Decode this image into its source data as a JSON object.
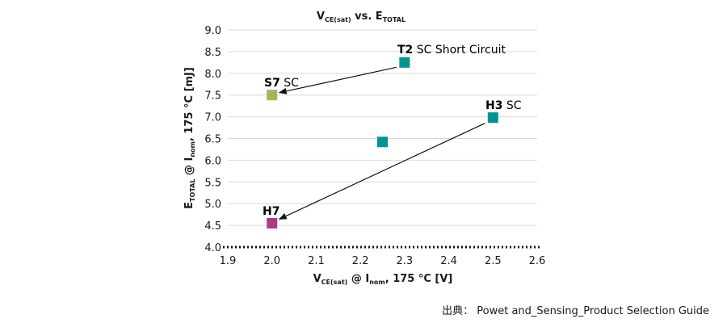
{
  "chart_data": {
    "type": "scatter",
    "title": {
      "main": "V",
      "main_sub": "CE(sat)",
      "rest": " vs. E",
      "rest_sub": "TOTAL"
    },
    "xlabel": {
      "p1": "V",
      "p1_sub": "CE(sat)",
      "p2": " @ I",
      "p2_sub": "nom",
      "p3": ", 175 °C [V]"
    },
    "ylabel": {
      "p1": "E",
      "p1_sub": "TOTAL",
      "p2": " @ I",
      "p2_sub": "nom",
      "p3": ", 175 °C [mJ]"
    },
    "xlim": [
      1.9,
      2.6
    ],
    "ylim": [
      4.0,
      9.0
    ],
    "x_ticks": [
      "1.9",
      "2.0",
      "2.1",
      "2.2",
      "2.3",
      "2.4",
      "2.5",
      "2.6"
    ],
    "y_ticks": [
      "4.0",
      "4.5",
      "5.0",
      "5.5",
      "6.0",
      "6.5",
      "7.0",
      "7.5",
      "8.0",
      "8.5",
      "9.0"
    ],
    "grid": "horizontal",
    "points": [
      {
        "x": 2.0,
        "y": 7.5,
        "color": "#9bbb59"
      },
      {
        "x": 2.3,
        "y": 8.25,
        "color": "#009490"
      },
      {
        "x": 2.25,
        "y": 6.42,
        "color": "#009490"
      },
      {
        "x": 2.5,
        "y": 6.98,
        "color": "#009490"
      },
      {
        "x": 2.0,
        "y": 4.55,
        "color": "#ad3c7f"
      }
    ],
    "annotations": [
      {
        "bold": "S7",
        "rest": " SC"
      },
      {
        "bold": "T2",
        "rest": " SC Short Circuit"
      },
      {
        "bold": "H3",
        "rest": " SC"
      },
      {
        "bold": "H7",
        "rest": ""
      }
    ],
    "arrows": [
      {
        "from": "T2",
        "to": "S7"
      },
      {
        "from": "H3",
        "to": "H7"
      }
    ]
  },
  "source": "出典： Powet and_Sensing_Product Selection Guide"
}
